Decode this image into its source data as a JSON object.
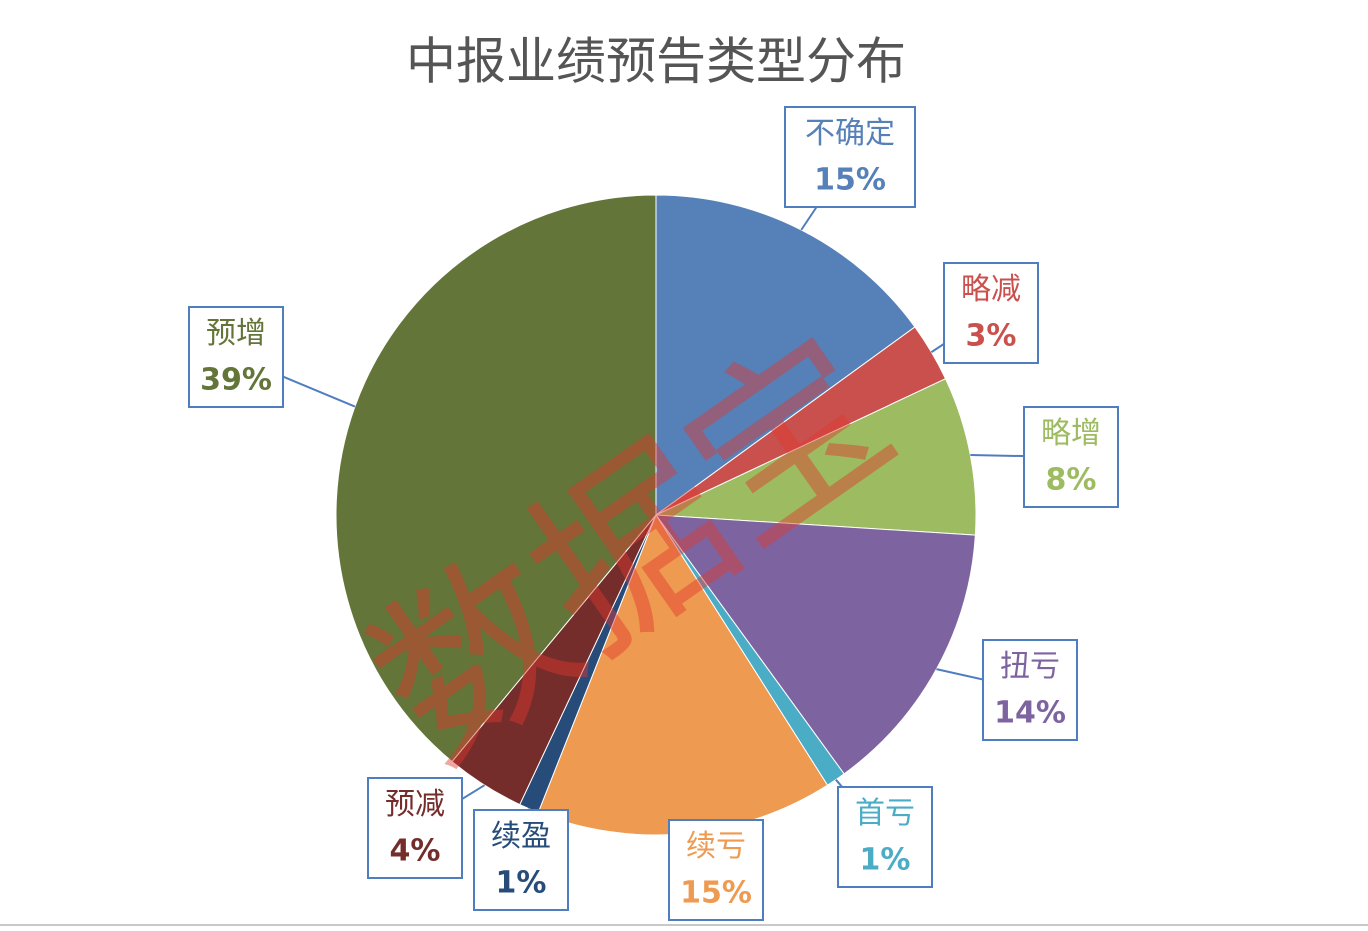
{
  "chart_data": {
    "type": "pie",
    "title": "中报业绩预告类型分布",
    "watermark": "数据宝",
    "categories": [
      "不确定",
      "略减",
      "略增",
      "扭亏",
      "首亏",
      "续亏",
      "续盈",
      "预减",
      "预增"
    ],
    "values": [
      15,
      3,
      8,
      14,
      1,
      15,
      1,
      4,
      39
    ],
    "value_labels": [
      "15%",
      "3%",
      "8%",
      "14%",
      "1%",
      "15%",
      "1%",
      "4%",
      "39%"
    ],
    "colors": [
      "#5580b8",
      "#c9504c",
      "#9dbb61",
      "#7d64a0",
      "#4bacc6",
      "#ee9a50",
      "#274c7a",
      "#742d2b",
      "#637538"
    ]
  }
}
